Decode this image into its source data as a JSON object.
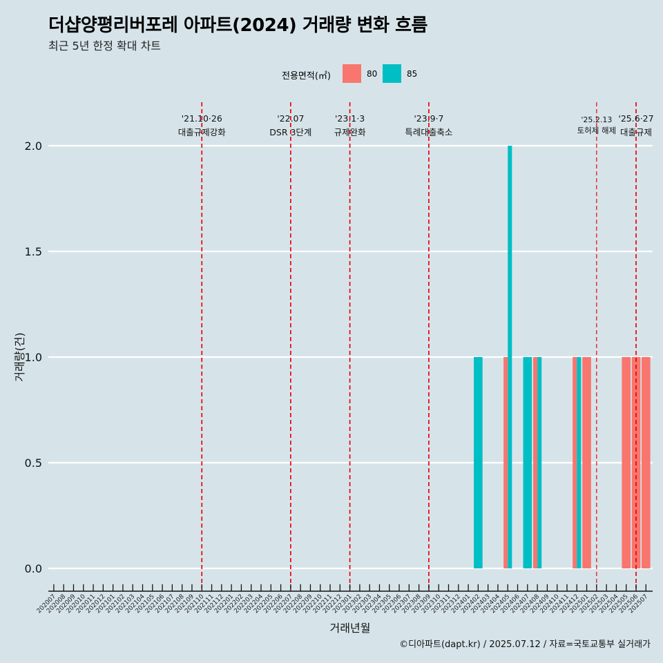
{
  "title": "더샵양평리버포레 아파트(2024) 거래량 변화 흐름",
  "subtitle": "최근 5년 한정 확대 차트",
  "legend": {
    "title": "전용면적(㎡)",
    "items": [
      {
        "label": "80",
        "color": "#F8766D"
      },
      {
        "label": "85",
        "color": "#00BFC4"
      }
    ]
  },
  "caption": "©디아파트(dapt.kr) / 2025.07.12 / 자료=국토교통부 실거래가",
  "chart_data": {
    "type": "bar",
    "xlabel": "거래년월",
    "ylabel": "거래량(건)",
    "ylim": [
      0,
      2.0
    ],
    "yticks": [
      "0.0",
      "0.5",
      "1.0",
      "1.5",
      "2.0"
    ],
    "grid": true,
    "legend_position": "top",
    "categories": [
      "202007",
      "202008",
      "202009",
      "202010",
      "202011",
      "202012",
      "202101",
      "202102",
      "202103",
      "202104",
      "202105",
      "202106",
      "202107",
      "202108",
      "202109",
      "202110",
      "202111",
      "202112",
      "202201",
      "202202",
      "202203",
      "202204",
      "202205",
      "202206",
      "202207",
      "202208",
      "202209",
      "202210",
      "202211",
      "202212",
      "202301",
      "202302",
      "202303",
      "202304",
      "202305",
      "202306",
      "202307",
      "202308",
      "202309",
      "202310",
      "202311",
      "202312",
      "202401",
      "202402",
      "202403",
      "202404",
      "202405",
      "202406",
      "202407",
      "202408",
      "202409",
      "202410",
      "202411",
      "202412",
      "202501",
      "202502",
      "202503",
      "202504",
      "202505",
      "202506",
      "202507"
    ],
    "series": [
      {
        "name": "80",
        "color": "#F8766D",
        "points": [
          {
            "x": "202405",
            "y": 1
          },
          {
            "x": "202408",
            "y": 1
          },
          {
            "x": "202412",
            "y": 1
          },
          {
            "x": "202501",
            "y": 1
          },
          {
            "x": "202505",
            "y": 1
          },
          {
            "x": "202506",
            "y": 1
          },
          {
            "x": "202507",
            "y": 1
          }
        ]
      },
      {
        "name": "85",
        "color": "#00BFC4",
        "points": [
          {
            "x": "202402",
            "y": 1
          },
          {
            "x": "202405",
            "y": 2
          },
          {
            "x": "202407",
            "y": 1
          },
          {
            "x": "202408",
            "y": 1
          },
          {
            "x": "202412",
            "y": 1
          }
        ]
      }
    ],
    "annotations": [
      {
        "x": "202110",
        "date": "'21.10·26",
        "label": "대출규제강화"
      },
      {
        "x": "202207",
        "date": "'22.07",
        "label": "DSR 3단계"
      },
      {
        "x": "202301",
        "date": "'23.1·3",
        "label": "규제완화"
      },
      {
        "x": "202309",
        "date": "'23.9·7",
        "label": "특례대출축소"
      },
      {
        "x": "202502",
        "date": "'25.2.13",
        "label": "토허제 해제"
      },
      {
        "x": "202506",
        "date": "'25.6·27",
        "label": "대출규제"
      }
    ]
  }
}
